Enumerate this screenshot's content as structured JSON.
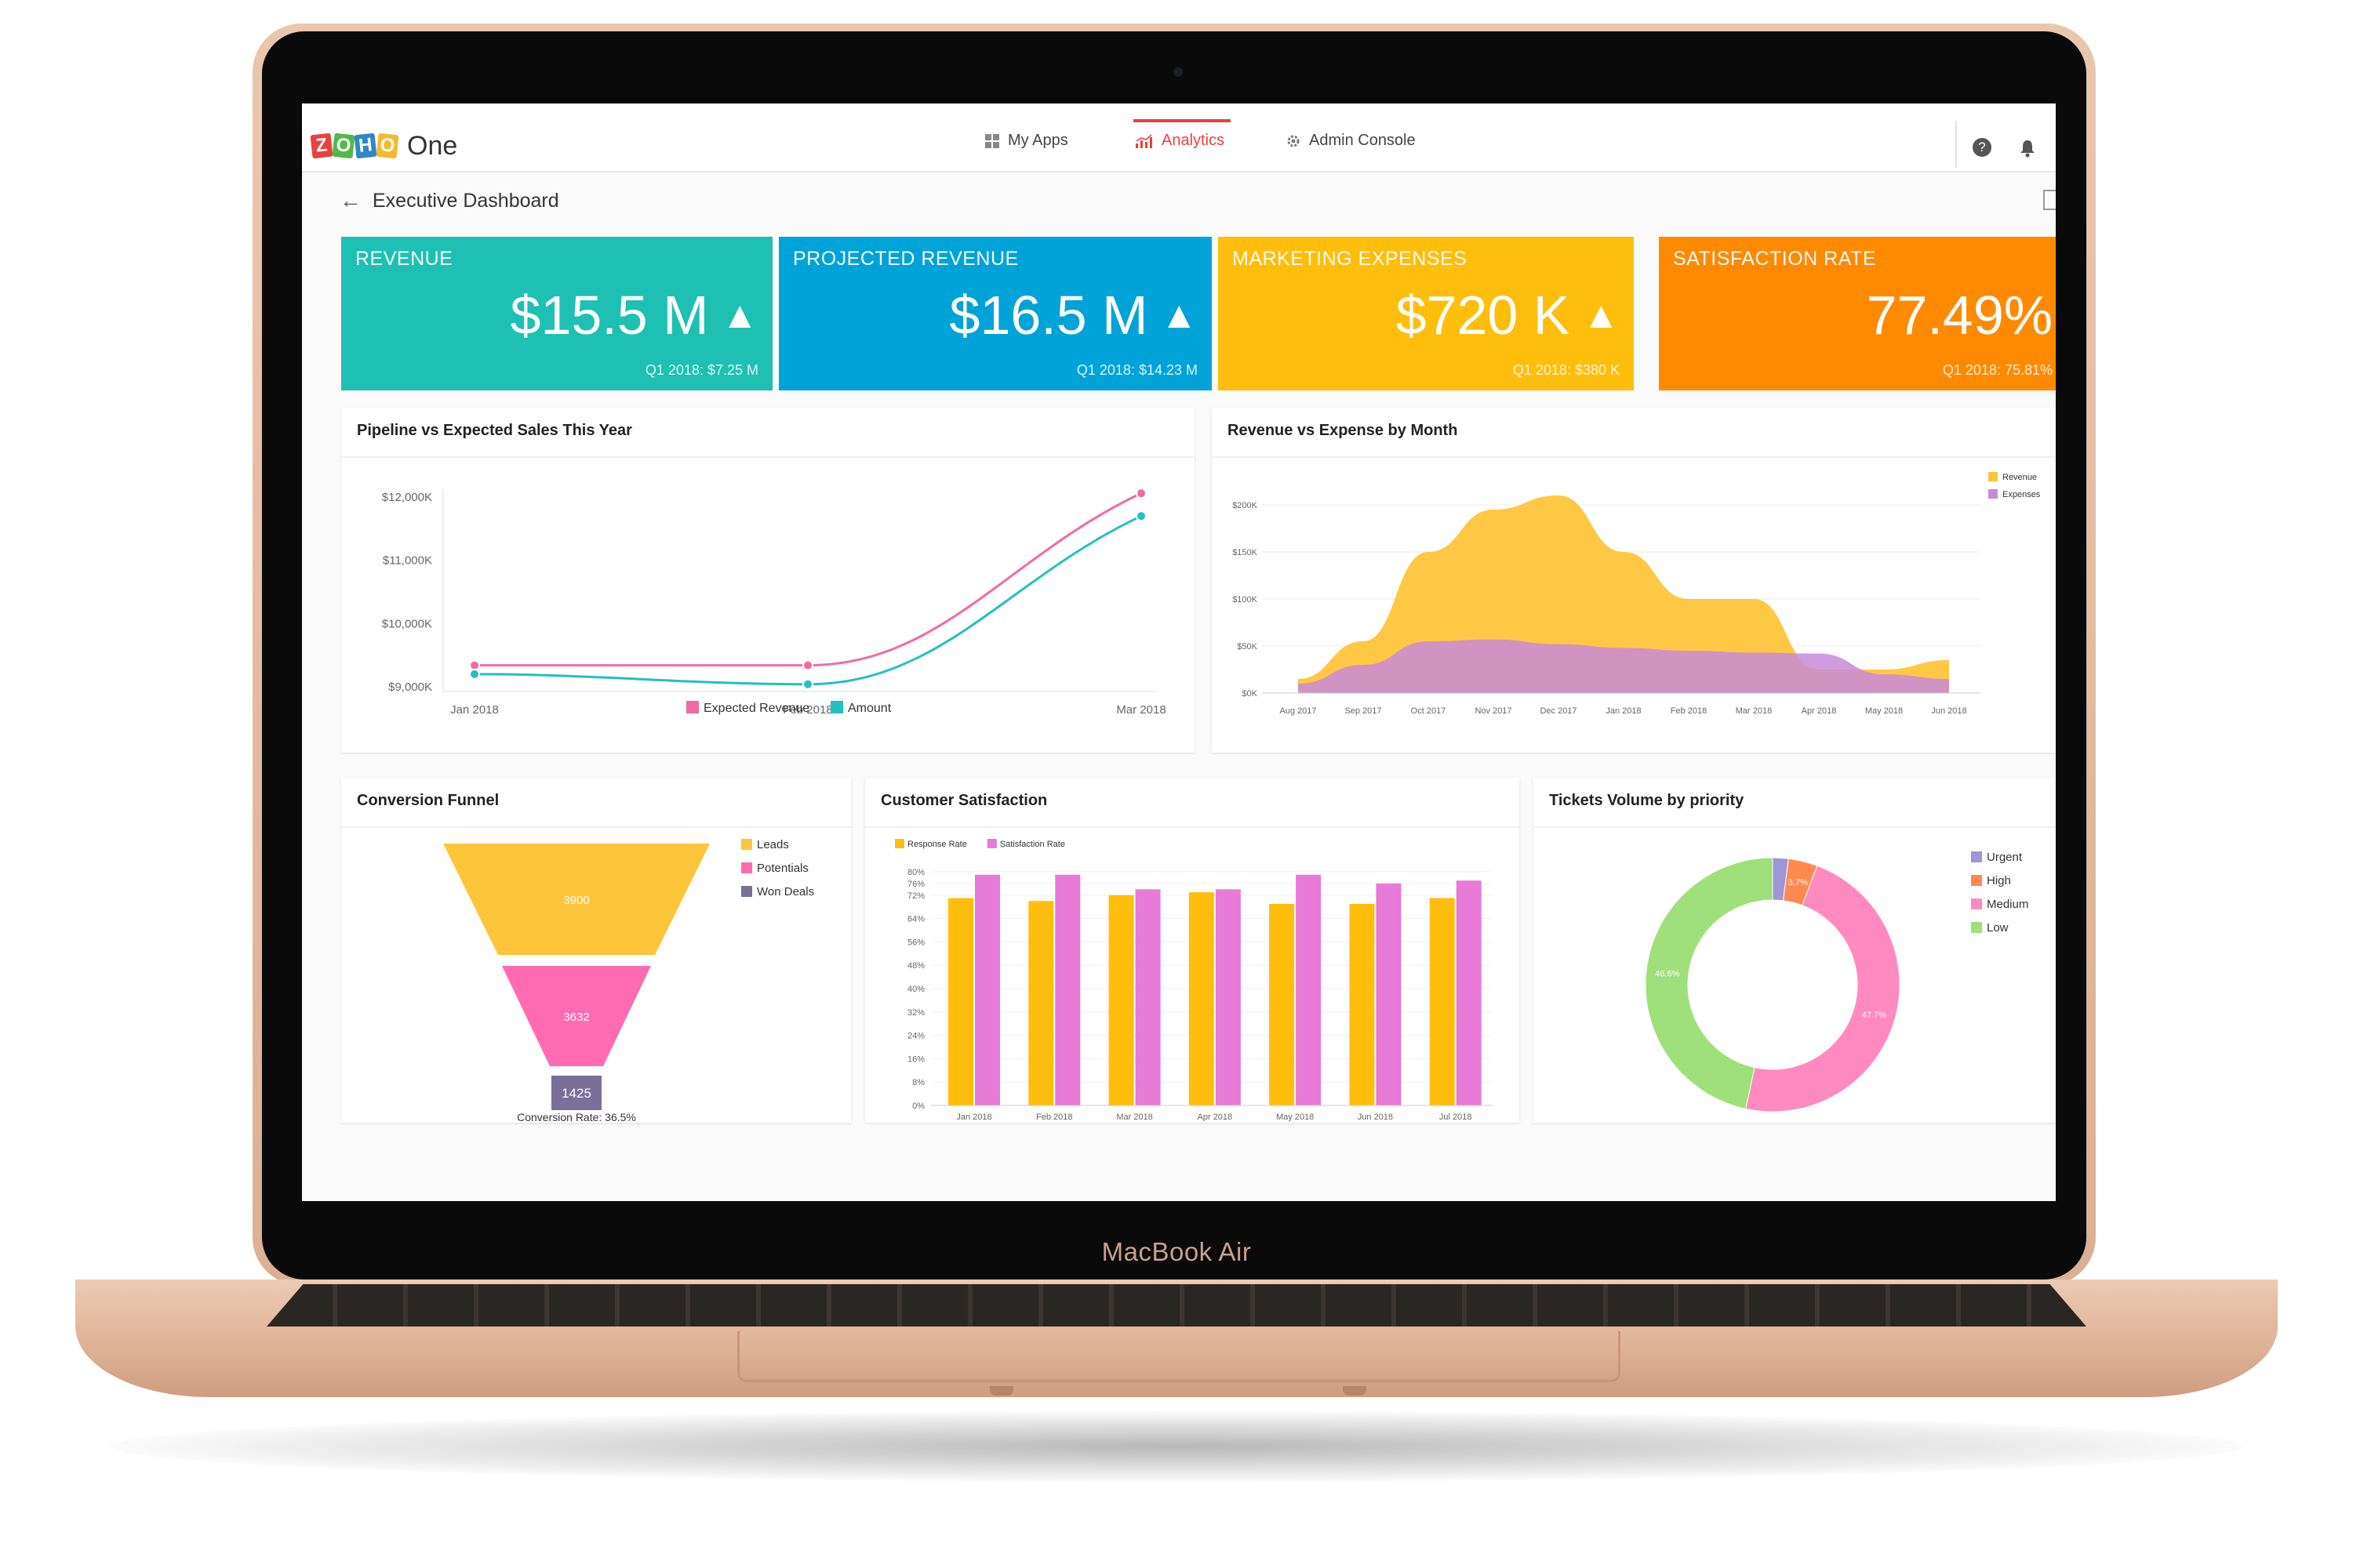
{
  "device": {
    "label": "MacBook Air"
  },
  "app": {
    "logo_letters": [
      "Z",
      "O",
      "H",
      "O"
    ],
    "logo_colors": [
      "#e8423f",
      "#52b848",
      "#2f86c8",
      "#f7b92b"
    ],
    "name": "One"
  },
  "nav": [
    {
      "label": "My Apps",
      "icon": "grid-icon",
      "active": false
    },
    {
      "label": "Analytics",
      "icon": "bar-chart-icon",
      "active": true
    },
    {
      "label": "Admin Console",
      "icon": "gear-icon",
      "active": false
    }
  ],
  "header_icons": [
    "help-icon",
    "bell-icon"
  ],
  "page": {
    "title": "Executive Dashboard"
  },
  "kpis": [
    {
      "label": "REVENUE",
      "value": "$15.5 M",
      "sub": "Q1 2018: $7.25 M",
      "color": "#1ec0b4",
      "arrow": true
    },
    {
      "label": "PROJECTED REVENUE",
      "value": "$16.5 M",
      "sub": "Q1 2018: $14.23 M",
      "color": "#00a3d8",
      "arrow": true
    },
    {
      "label": "MARKETING EXPENSES",
      "value": "$720 K",
      "sub": "Q1 2018: $380 K",
      "color": "#ffbe0b",
      "arrow": true
    },
    {
      "label": "SATISFACTION RATE",
      "value": "77.49%",
      "sub": "Q1 2018: 75.81%",
      "color": "#ff8a00",
      "arrow": false
    }
  ],
  "chart_data": [
    {
      "type": "line",
      "title": "Pipeline vs Expected Sales This Year",
      "x": [
        "Jan 2018",
        "Feb 2018",
        "Mar 2018"
      ],
      "yticks": [
        "$12,000K",
        "$11,000K",
        "$10,000K",
        "$9,000K"
      ],
      "ylim": [
        9000,
        12000
      ],
      "series": [
        {
          "name": "Expected Revenue",
          "color": "#f06aa6",
          "values": [
            9340,
            9340,
            12060
          ]
        },
        {
          "name": "Amount",
          "color": "#22c0c0",
          "values": [
            9200,
            9040,
            11700
          ]
        }
      ],
      "legend": "bottom"
    },
    {
      "type": "area",
      "title": "Revenue vs Expense by Month",
      "x": [
        "Aug 2017",
        "Sep 2017",
        "Oct 2017",
        "Nov 2017",
        "Dec 2017",
        "Jan 2018",
        "Feb 2018",
        "Mar 2018",
        "Apr 2018",
        "May 2018",
        "Jun 2018"
      ],
      "yticks": [
        "$200K",
        "$150K",
        "$100K",
        "$50K",
        "$0K"
      ],
      "ylim": [
        0,
        200
      ],
      "series": [
        {
          "name": "Revenue",
          "color": "#ffc53a",
          "values": [
            15,
            55,
            150,
            195,
            210,
            150,
            100,
            100,
            25,
            25,
            35
          ]
        },
        {
          "name": "Expenses",
          "color": "#c88ad8",
          "values": [
            10,
            30,
            55,
            57,
            52,
            48,
            45,
            43,
            42,
            20,
            15
          ]
        }
      ],
      "legend": "top-right"
    },
    {
      "type": "funnel",
      "title": "Conversion Funnel",
      "categories": [
        "Leads",
        "Potentials",
        "Won Deals"
      ],
      "values": [
        3900,
        3632,
        1425
      ],
      "colors": [
        "#ffc53a",
        "#ff6bb0",
        "#7a6f9b"
      ],
      "footer": "Conversion Rate: 36.5%",
      "legend": "right"
    },
    {
      "type": "bar",
      "title": "Customer Satisfaction",
      "categories": [
        "Jan 2018",
        "Feb 2018",
        "Mar 2018",
        "Apr 2018",
        "May 2018",
        "Jun 2018",
        "Jul 2018"
      ],
      "yticks": [
        "80%",
        "76%",
        "72%",
        "64%",
        "56%",
        "48%",
        "40%",
        "32%",
        "24%",
        "16%",
        "8%",
        "0%"
      ],
      "ylim": [
        0,
        80
      ],
      "series": [
        {
          "name": "Response Rate",
          "color": "#ffbe0b",
          "values": [
            71,
            70,
            72,
            73,
            69,
            69,
            71
          ]
        },
        {
          "name": "Satisfaction Rate",
          "color": "#e87ad8",
          "values": [
            79,
            79,
            74,
            74,
            79,
            76,
            77
          ]
        }
      ],
      "legend": "top-left"
    },
    {
      "type": "pie",
      "title": "Tickets Volume by priority",
      "categories": [
        "Urgent",
        "High",
        "Medium",
        "Low"
      ],
      "values": [
        2,
        3.7,
        47.7,
        46.6
      ],
      "data_labels": [
        "",
        "3.7%",
        "47.7%",
        "46.6%"
      ],
      "colors": [
        "#9e96d8",
        "#ff8a50",
        "#ff8ac0",
        "#9fe07a"
      ],
      "donut": true,
      "legend": "top-right"
    }
  ]
}
